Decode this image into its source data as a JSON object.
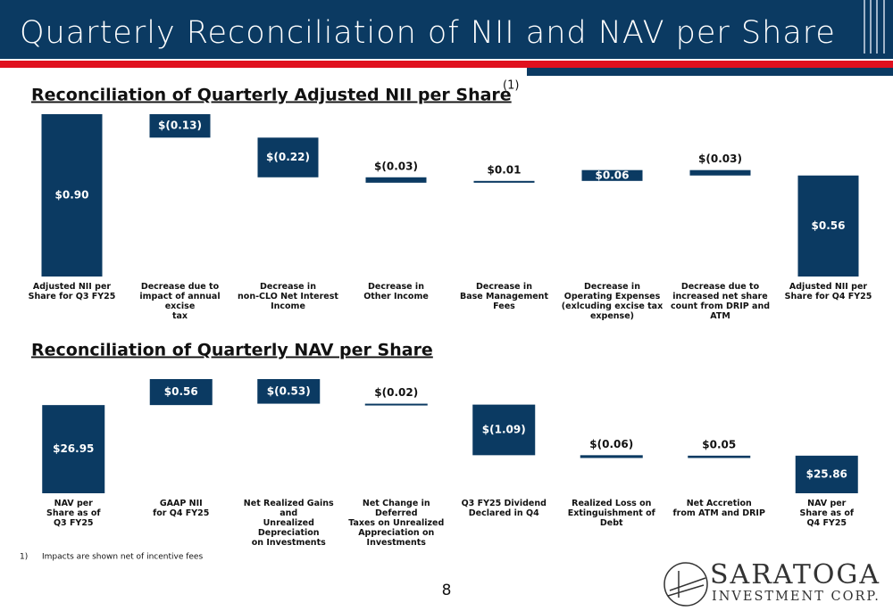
{
  "header": {
    "title": "Quarterly Reconciliation of NII and NAV per Share"
  },
  "chart_data": [
    {
      "type": "waterfall",
      "title": "Reconciliation of Quarterly Adjusted NII per Share",
      "title_note": "(1)",
      "categories": [
        "Adjusted NII per\nShare for Q3 FY25",
        "Decrease due to\nimpact of annual excise\ntax",
        "Decrease in\nnon-CLO Net Interest\nIncome",
        "Decrease in\nOther Income",
        "Decrease in\nBase Management Fees",
        "Decrease in\nOperating Expenses\n(exlcuding excise tax\nexpense)",
        "Decrease due to\nincreased net share\ncount from DRIP and\nATM",
        "Adjusted NII per\nShare for Q4 FY25"
      ],
      "measure": [
        "total",
        "relative",
        "relative",
        "relative",
        "relative",
        "relative",
        "relative",
        "total"
      ],
      "values": [
        0.9,
        -0.13,
        -0.22,
        -0.03,
        0.01,
        0.06,
        -0.03,
        0.56
      ],
      "value_labels": [
        "$0.90",
        "$(0.13)",
        "$(0.22)",
        "$(0.03)",
        "$0.01",
        "$0.06",
        "$(0.03)",
        "$0.56"
      ],
      "color": "#0b3a62",
      "ylim": [
        0,
        0.9
      ]
    },
    {
      "type": "waterfall",
      "title": "Reconciliation of Quarterly NAV per Share",
      "categories": [
        "NAV per\nShare as of\nQ3 FY25",
        "GAAP NII\nfor Q4 FY25",
        "Net Realized Gains and\nUnrealized Depreciation\non Investments",
        "Net Change in Deferred\nTaxes on Unrealized\nAppreciation on\nInvestments",
        "Q3 FY25 Dividend\nDeclared in Q4",
        "Realized Loss on\nExtinguishment of Debt",
        "Net Accretion\nfrom ATM and DRIP",
        "NAV per\nShare as of\nQ4 FY25"
      ],
      "measure": [
        "total",
        "relative",
        "relative",
        "relative",
        "relative",
        "relative",
        "relative",
        "total"
      ],
      "values": [
        26.95,
        0.56,
        -0.53,
        -0.02,
        -1.09,
        -0.06,
        0.05,
        25.86
      ],
      "value_labels": [
        "$26.95",
        "$0.56",
        "$(0.53)",
        "$(0.02)",
        "$(1.09)",
        "$(0.06)",
        "$0.05",
        "$25.86"
      ],
      "color": "#0b3a62",
      "ylim": [
        25.05,
        27.51
      ]
    }
  ],
  "footnote": {
    "marker": "1)",
    "text": "Impacts are shown net of incentive fees"
  },
  "page_number": "8",
  "logo": {
    "name": "SARATOGA",
    "tagline": "INVESTMENT CORP."
  }
}
